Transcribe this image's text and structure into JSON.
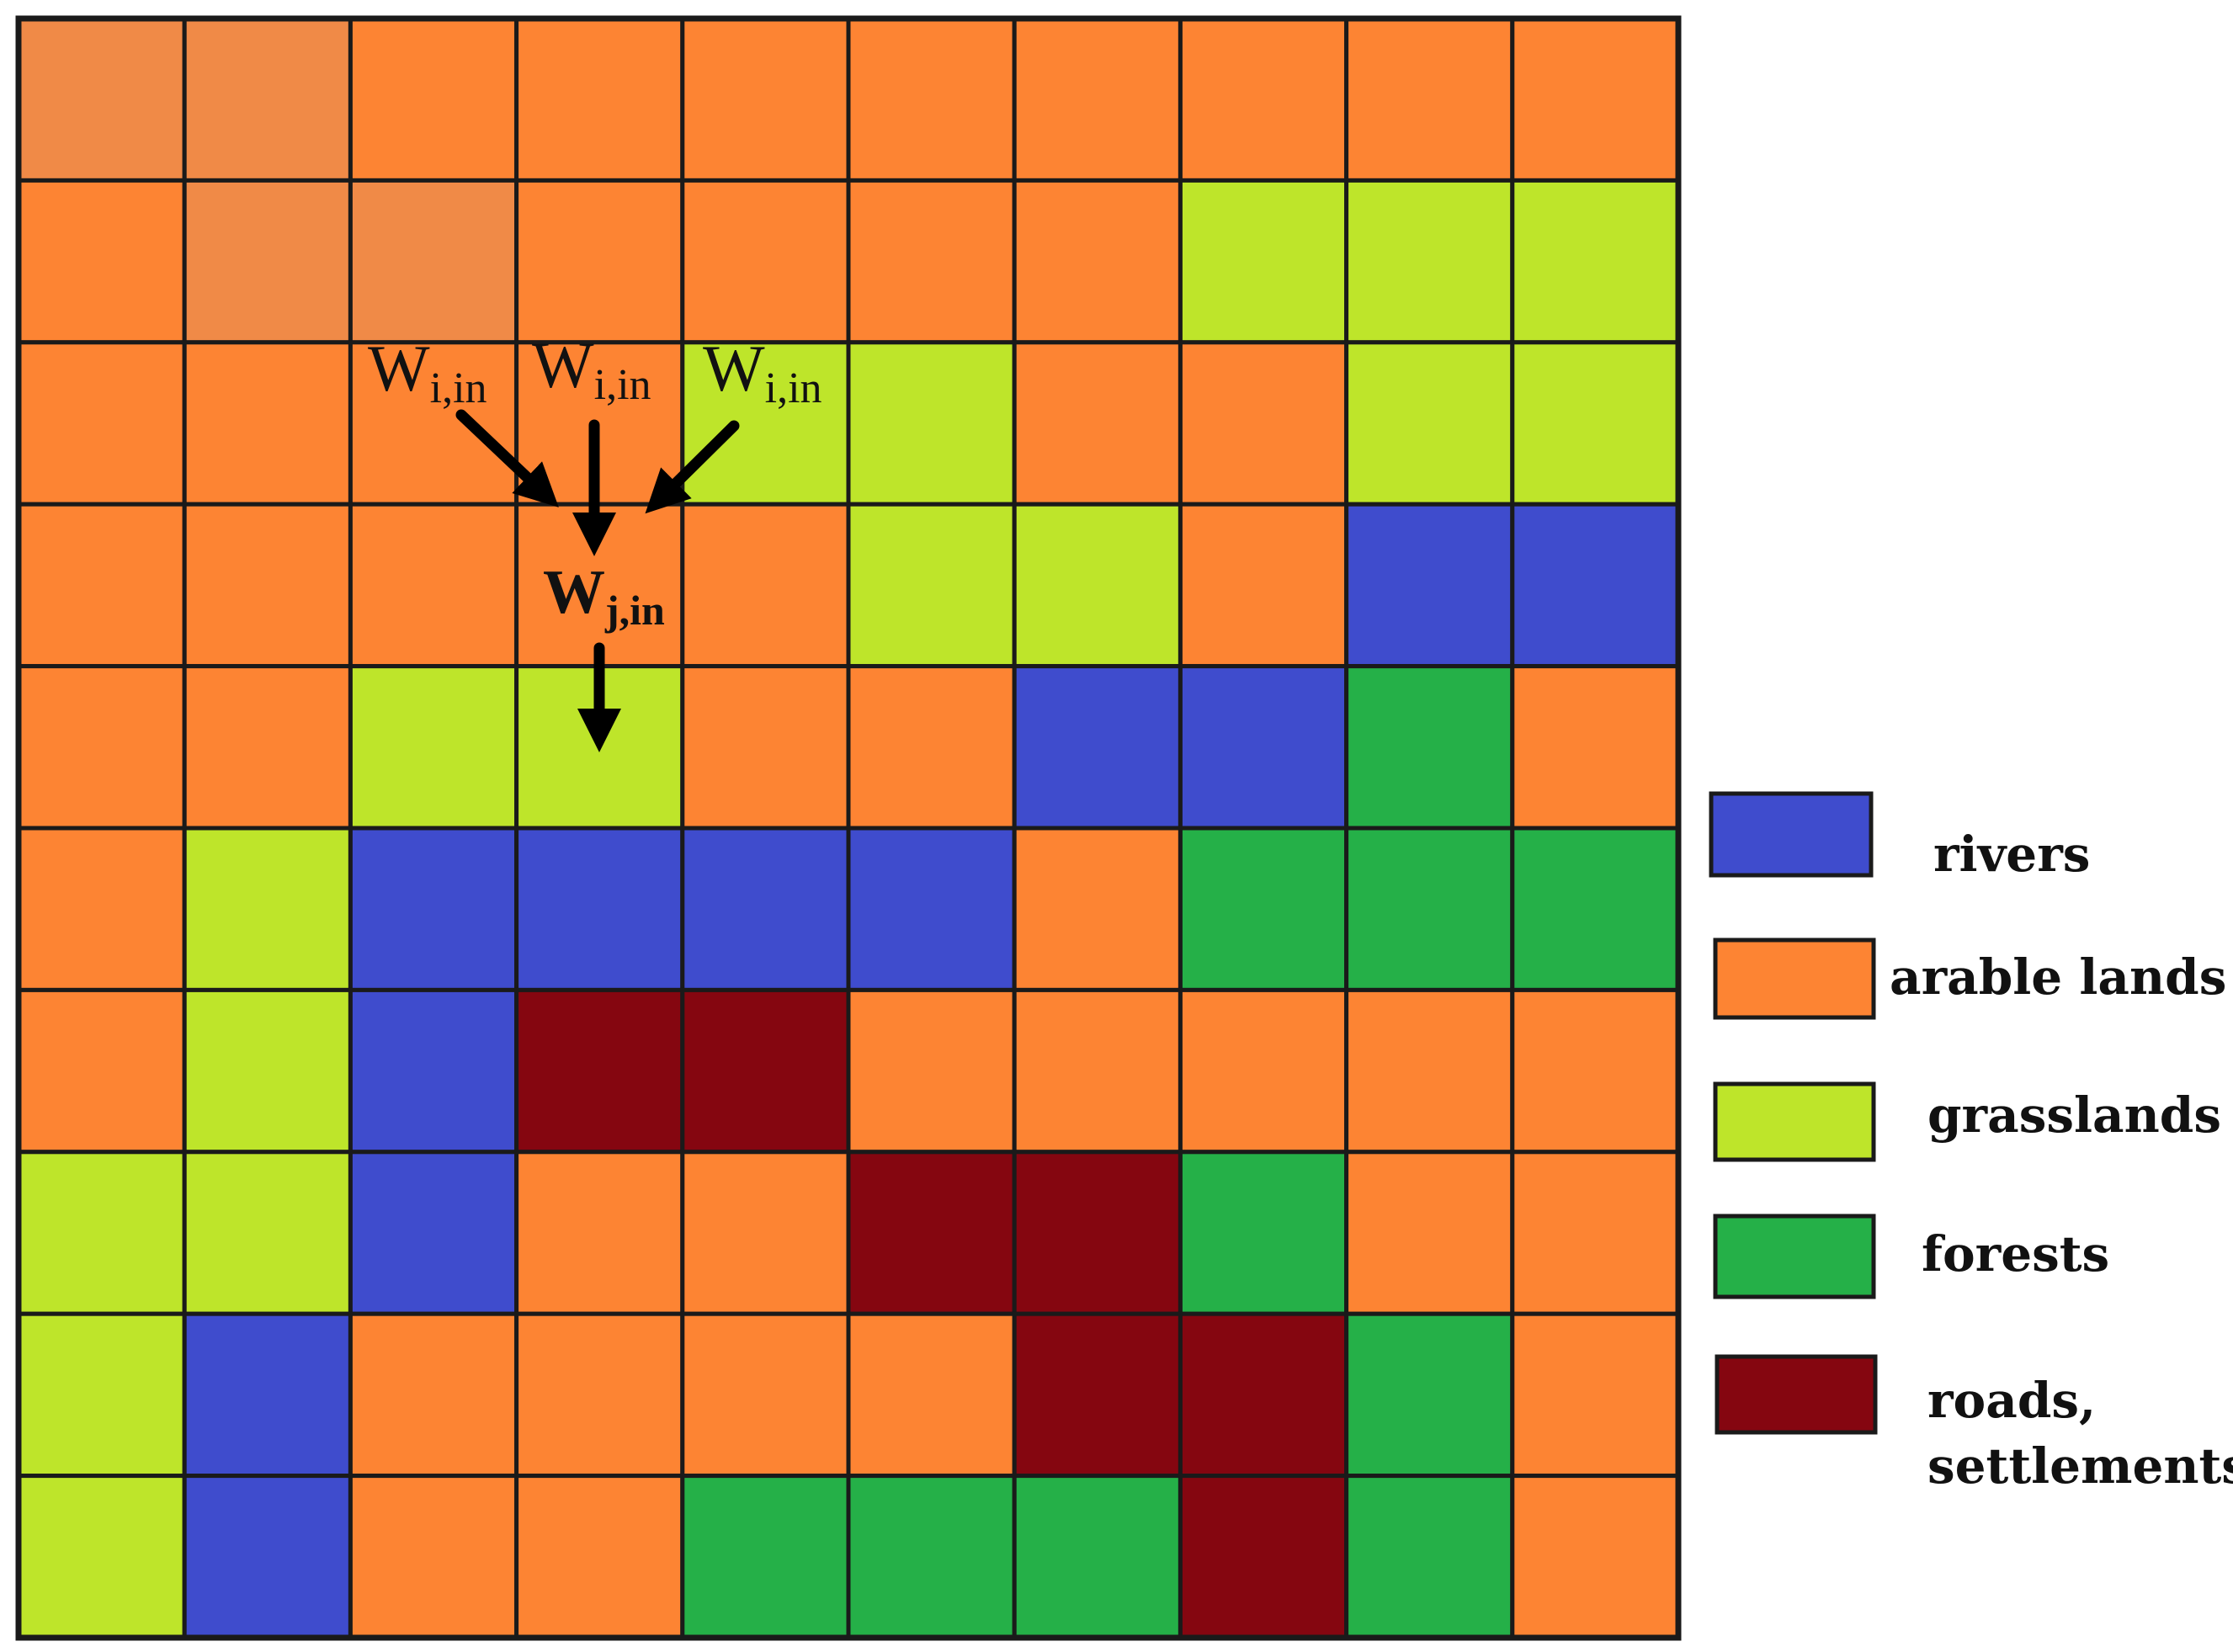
{
  "colors": {
    "rivers": "#3f4ccd",
    "arable": "#fd8433",
    "arable_light": "#f08a47",
    "grass": "#bee52a",
    "forest": "#25b048",
    "roads": "#850610"
  },
  "grid": {
    "rows": 10,
    "cols": 10,
    "cells": [
      [
        "arable_light",
        "arable_light",
        "arable",
        "arable",
        "arable",
        "arable",
        "arable",
        "arable",
        "arable",
        "arable"
      ],
      [
        "arable",
        "arable_light",
        "arable_light",
        "arable",
        "arable",
        "arable",
        "arable",
        "grass",
        "grass",
        "grass"
      ],
      [
        "arable",
        "arable",
        "arable",
        "arable",
        "grass",
        "grass",
        "arable",
        "arable",
        "grass",
        "grass"
      ],
      [
        "arable",
        "arable",
        "arable",
        "arable",
        "arable",
        "grass",
        "grass",
        "arable",
        "rivers",
        "rivers"
      ],
      [
        "arable",
        "arable",
        "grass",
        "grass",
        "arable",
        "arable",
        "rivers",
        "rivers",
        "forest",
        "arable"
      ],
      [
        "arable",
        "grass",
        "rivers",
        "rivers",
        "rivers",
        "rivers",
        "arable",
        "forest",
        "forest",
        "forest"
      ],
      [
        "arable",
        "grass",
        "rivers",
        "roads",
        "roads",
        "arable",
        "arable",
        "arable",
        "arable",
        "arable"
      ],
      [
        "grass",
        "grass",
        "rivers",
        "arable",
        "arable",
        "roads",
        "roads",
        "forest",
        "arable",
        "arable"
      ],
      [
        "grass",
        "rivers",
        "arable",
        "arable",
        "arable",
        "arable",
        "roads",
        "roads",
        "forest",
        "arable"
      ],
      [
        "grass",
        "rivers",
        "arable",
        "arable",
        "forest",
        "forest",
        "forest",
        "roads",
        "forest",
        "arable"
      ]
    ]
  },
  "legend": [
    {
      "key": "rivers",
      "label": "rivers"
    },
    {
      "key": "arable",
      "label": "arable lands"
    },
    {
      "key": "grass",
      "label": "grasslands"
    },
    {
      "key": "forest",
      "label": "forests"
    },
    {
      "key": "roads",
      "label": "roads,",
      "label2": "settlements"
    }
  ],
  "flow": {
    "inflow_labels": [
      {
        "main": "W",
        "sub": "i,in"
      },
      {
        "main": "W",
        "sub": "i,in"
      },
      {
        "main": "W",
        "sub": "i,in"
      }
    ],
    "target_label": {
      "main": "W",
      "sub": "j,in"
    }
  }
}
